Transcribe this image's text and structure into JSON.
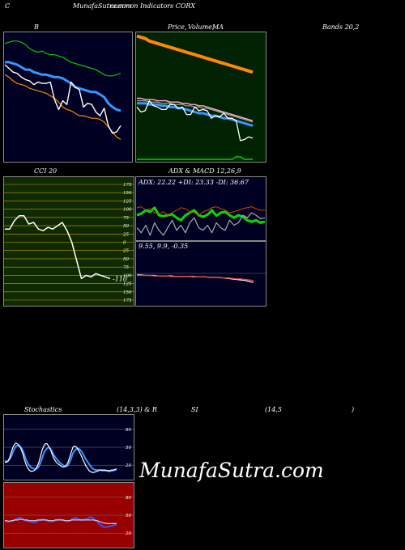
{
  "header": {
    "left": "C",
    "mid": "MunafaSutra.com",
    "mid2": "common Indicators CORX"
  },
  "titles": {
    "bollinger": "B",
    "price_ma_1": "Price,",
    "price_ma_2": "Volume,",
    "price_ma_3": "MA",
    "bands": "Bands 20,2",
    "cci": "CCI 20",
    "adx_macd": "ADX  & MACD 12,26,9",
    "stoch_a": "Stochastics",
    "stoch_b": "(14,3,3) & R",
    "stoch_c": "SI",
    "stoch_d": "(14,5",
    "stoch_e": ")"
  },
  "watermark": "MunafaSutra.com",
  "colors": {
    "bg": "#000000",
    "navy_panel": "#000022",
    "green_panel": "#002200",
    "cci_panel": "#0f2a00",
    "rsi_panel": "#990000",
    "grid": "#3a3a3a",
    "blue": "#3399ff",
    "orange": "#ff8800",
    "green": "#00cc00",
    "white": "#ffffff"
  },
  "chart_data": [
    {
      "id": "bollinger",
      "type": "line",
      "title": "B",
      "x": [
        0,
        1,
        2,
        3,
        4,
        5,
        6,
        7,
        8,
        9,
        10,
        11,
        12,
        13,
        14,
        15,
        16,
        17,
        18,
        19,
        20,
        21,
        22,
        23,
        24,
        25,
        26,
        27,
        28
      ],
      "series": [
        {
          "color": "#00cc00",
          "values": [
            0.93,
            0.94,
            0.95,
            0.95,
            0.94,
            0.92,
            0.89,
            0.87,
            0.86,
            0.87,
            0.85,
            0.84,
            0.84,
            0.83,
            0.82,
            0.8,
            0.78,
            0.77,
            0.76,
            0.75,
            0.74,
            0.73,
            0.72,
            0.7,
            0.68,
            0.67,
            0.67,
            0.68,
            0.69
          ]
        },
        {
          "color": "#3399ff",
          "values": [
            0.78,
            0.78,
            0.77,
            0.76,
            0.74,
            0.72,
            0.72,
            0.7,
            0.69,
            0.68,
            0.68,
            0.67,
            0.66,
            0.66,
            0.65,
            0.63,
            0.61,
            0.58,
            0.57,
            0.56,
            0.55,
            0.54,
            0.54,
            0.52,
            0.5,
            0.45,
            0.42,
            0.4,
            0.39
          ]
        },
        {
          "color": "#ff8800",
          "values": [
            0.68,
            0.66,
            0.63,
            0.61,
            0.6,
            0.59,
            0.57,
            0.56,
            0.55,
            0.54,
            0.53,
            0.51,
            0.49,
            0.46,
            0.42,
            0.4,
            0.39,
            0.37,
            0.35,
            0.35,
            0.34,
            0.33,
            0.33,
            0.32,
            0.3,
            0.26,
            0.22,
            0.18,
            0.16
          ]
        },
        {
          "color": "#ffffff",
          "values": [
            0.76,
            0.73,
            0.7,
            0.69,
            0.66,
            0.64,
            0.63,
            0.6,
            0.62,
            0.61,
            0.61,
            0.62,
            0.48,
            0.4,
            0.47,
            0.44,
            0.62,
            0.58,
            0.56,
            0.42,
            0.45,
            0.44,
            0.38,
            0.35,
            0.41,
            0.27,
            0.21,
            0.22,
            0.27
          ]
        }
      ]
    },
    {
      "id": "price_volume_ma",
      "type": "line",
      "title": "Price, Volume, MA",
      "x": [
        0,
        1,
        2,
        3,
        4,
        5,
        6,
        7,
        8,
        9,
        10,
        11,
        12,
        13,
        14,
        15,
        16,
        17,
        18,
        19,
        20,
        21,
        22,
        23,
        24,
        25,
        26,
        27,
        28
      ],
      "series": [
        {
          "color": "#ff8800",
          "values": [
            0.99,
            0.98,
            0.97,
            0.95,
            0.94,
            0.93,
            0.92,
            0.91,
            0.9,
            0.89,
            0.88,
            0.87,
            0.86,
            0.85,
            0.84,
            0.83,
            0.82,
            0.81,
            0.8,
            0.79,
            0.78,
            0.77,
            0.76,
            0.75,
            0.74,
            0.73,
            0.72,
            0.71,
            0.7
          ]
        },
        {
          "color": "#ffaacc",
          "values": [
            0.49,
            0.49,
            0.48,
            0.48,
            0.48,
            0.47,
            0.47,
            0.47,
            0.46,
            0.46,
            0.46,
            0.45,
            0.45,
            0.44,
            0.44,
            0.43,
            0.43,
            0.42,
            0.41,
            0.4,
            0.39,
            0.38,
            0.37,
            0.36,
            0.35,
            0.34,
            0.33,
            0.32,
            0.31
          ]
        },
        {
          "color": "#aaaaaa",
          "values": [
            0.47,
            0.47,
            0.47,
            0.46,
            0.46,
            0.46,
            0.45,
            0.45,
            0.45,
            0.44,
            0.44,
            0.44,
            0.43,
            0.43,
            0.42,
            0.42,
            0.41,
            0.41,
            0.4,
            0.39,
            0.38,
            0.37,
            0.36,
            0.35,
            0.34,
            0.33,
            0.32,
            0.31,
            0.3
          ]
        },
        {
          "color": "#3399ff",
          "values": [
            0.45,
            0.45,
            0.45,
            0.44,
            0.44,
            0.44,
            0.43,
            0.43,
            0.42,
            0.42,
            0.41,
            0.41,
            0.4,
            0.39,
            0.38,
            0.37,
            0.37,
            0.36,
            0.35,
            0.35,
            0.34,
            0.33,
            0.33,
            0.32,
            0.31,
            0.3,
            0.29,
            0.28,
            0.27
          ]
        },
        {
          "color": "#ffffff",
          "values": [
            0.42,
            0.38,
            0.39,
            0.47,
            0.43,
            0.42,
            0.4,
            0.4,
            0.44,
            0.44,
            0.41,
            0.42,
            0.36,
            0.36,
            0.42,
            0.39,
            0.4,
            0.39,
            0.33,
            0.35,
            0.34,
            0.37,
            0.33,
            0.33,
            0.31,
            0.15,
            0.16,
            0.18,
            0.17
          ]
        },
        {
          "color": "#00aa00",
          "values": [
            0.0,
            0.0,
            0.0,
            0.0,
            0.0,
            0.0,
            0.0,
            0.0,
            0.0,
            0.0,
            0.0,
            0.0,
            0.0,
            0.0,
            0.0,
            0.0,
            0.0,
            0.0,
            0.0,
            0.0,
            0.0,
            0.0,
            0.0,
            0.0,
            0.02,
            0.02,
            0.0,
            0.0,
            0.0
          ]
        }
      ]
    },
    {
      "id": "cci",
      "type": "line",
      "title": "CCI 20",
      "ylim": [
        -175,
        175
      ],
      "yticks": [
        175,
        150,
        125,
        100,
        75,
        50,
        25,
        0,
        -25,
        -50,
        -75,
        -100,
        -125,
        -150,
        -175
      ],
      "ytick_labels": [
        "175",
        "150",
        "125",
        "100",
        "75",
        "50",
        "25",
        "0",
        "25",
        "50",
        "75",
        "100",
        "125",
        "150",
        "175"
      ],
      "x": [
        0,
        1,
        2,
        3,
        4,
        5,
        6,
        7,
        8,
        9,
        10,
        11,
        12,
        13,
        14,
        15,
        16,
        17,
        18,
        19,
        20,
        21,
        22
      ],
      "values": [
        40,
        40,
        65,
        80,
        80,
        55,
        60,
        40,
        35,
        45,
        40,
        50,
        60,
        35,
        0,
        -55,
        -110,
        -100,
        -105,
        -95,
        -100,
        -105,
        -110
      ],
      "last_label": "-110"
    },
    {
      "id": "adx",
      "type": "line",
      "title": "ADX  & MACD 12,26,9",
      "label": "ADX: 22.22  +DI: 23.33 -DI: 36.67",
      "x": [
        0,
        1,
        2,
        3,
        4,
        5,
        6,
        7,
        8,
        9,
        10,
        11,
        12,
        13,
        14,
        15,
        16,
        17,
        18,
        19,
        20,
        21,
        22,
        23,
        24,
        25,
        26,
        27,
        28,
        29
      ],
      "series": [
        {
          "color": "#00dd00",
          "values": [
            0.45,
            0.48,
            0.55,
            0.52,
            0.6,
            0.45,
            0.43,
            0.45,
            0.47,
            0.4,
            0.35,
            0.45,
            0.5,
            0.55,
            0.45,
            0.42,
            0.46,
            0.55,
            0.44,
            0.5,
            0.52,
            0.45,
            0.4,
            0.45,
            0.42,
            0.35,
            0.32,
            0.35,
            0.3,
            0.32
          ]
        },
        {
          "color": "#cc4400",
          "values": [
            0.6,
            0.62,
            0.55,
            0.58,
            0.5,
            0.48,
            0.52,
            0.45,
            0.5,
            0.55,
            0.6,
            0.58,
            0.52,
            0.5,
            0.45,
            0.52,
            0.55,
            0.6,
            0.62,
            0.58,
            0.55,
            0.5,
            0.52,
            0.55,
            0.58,
            0.6,
            0.62,
            0.58,
            0.55,
            0.55
          ]
        },
        {
          "color": "#aaaaaa",
          "values": [
            0.2,
            0.1,
            0.25,
            0.05,
            0.3,
            0.15,
            0.05,
            0.2,
            0.35,
            0.15,
            0.25,
            0.1,
            0.3,
            0.4,
            0.2,
            0.15,
            0.25,
            0.1,
            0.3,
            0.2,
            0.15,
            0.35,
            0.25,
            0.3,
            0.45,
            0.4,
            0.5,
            0.45,
            0.38,
            0.4
          ]
        }
      ]
    },
    {
      "id": "macd",
      "type": "line",
      "label": "9.55,  9.9,  -0.35",
      "x": [
        0,
        1,
        2,
        3,
        4,
        5,
        6,
        7,
        8,
        9,
        10,
        11,
        12,
        13,
        14,
        15,
        16,
        17,
        18,
        19,
        20,
        21,
        22,
        23,
        24,
        25,
        26,
        27
      ],
      "series": [
        {
          "color": "#ffffff",
          "values": [
            0.55,
            0.55,
            0.54,
            0.54,
            0.54,
            0.53,
            0.53,
            0.53,
            0.53,
            0.52,
            0.52,
            0.52,
            0.52,
            0.52,
            0.51,
            0.51,
            0.51,
            0.5,
            0.5,
            0.5,
            0.49,
            0.48,
            0.47,
            0.46,
            0.45,
            0.44,
            0.42,
            0.4
          ]
        },
        {
          "color": "#ff4444",
          "values": [
            0.54,
            0.54,
            0.54,
            0.54,
            0.53,
            0.53,
            0.53,
            0.53,
            0.52,
            0.52,
            0.52,
            0.52,
            0.52,
            0.51,
            0.51,
            0.51,
            0.51,
            0.5,
            0.5,
            0.5,
            0.49,
            0.49,
            0.48,
            0.47,
            0.47,
            0.46,
            0.45,
            0.44
          ]
        }
      ]
    },
    {
      "id": "stochastics",
      "type": "line",
      "title": "Stochastics (14,3,3)",
      "ylim": [
        0,
        100
      ],
      "yticks": [
        80,
        50,
        20
      ],
      "x": [
        0,
        1,
        2,
        3,
        4,
        5,
        6,
        7,
        8,
        9,
        10,
        11,
        12,
        13,
        14,
        15,
        16,
        17,
        18,
        19,
        20,
        21,
        22,
        23,
        24,
        25,
        26,
        27,
        28,
        29,
        30,
        31,
        32,
        33,
        34,
        35,
        36,
        37,
        38,
        39,
        40,
        41,
        42,
        43,
        44,
        45,
        46,
        47,
        48,
        49,
        50,
        51,
        52,
        53,
        54,
        55,
        56,
        57,
        58,
        59,
        60,
        61,
        62,
        63,
        64,
        65,
        66,
        67,
        68,
        69
      ],
      "series": [
        {
          "color": "#3399ff",
          "values": [
            28,
            26,
            27,
            30,
            35,
            42,
            48,
            52,
            53,
            52,
            50,
            45,
            38,
            30,
            24,
            20,
            17,
            15,
            14,
            14,
            15,
            18,
            24,
            32,
            40,
            45,
            48,
            50,
            48,
            44,
            38,
            34,
            30,
            27,
            24,
            22,
            20,
            18,
            18,
            20,
            25,
            32,
            40,
            44,
            47,
            48,
            47,
            44,
            40,
            35,
            30,
            26,
            22,
            18,
            15,
            13,
            12,
            12,
            12,
            12,
            11,
            11,
            11,
            11,
            10,
            10,
            11,
            11,
            12,
            13
          ]
        },
        {
          "color": "#ffffff",
          "values": [
            25,
            25,
            27,
            33,
            42,
            50,
            55,
            57,
            55,
            53,
            47,
            40,
            30,
            22,
            16,
            12,
            10,
            10,
            11,
            13,
            18,
            25,
            35,
            45,
            52,
            56,
            56,
            52,
            47,
            40,
            33,
            28,
            24,
            22,
            20,
            18,
            17,
            18,
            20,
            25,
            33,
            42,
            50,
            52,
            51,
            47,
            42,
            37,
            31,
            25,
            19,
            15,
            11,
            9,
            8,
            8,
            9,
            10,
            11,
            12,
            12,
            12,
            12,
            11,
            11,
            11,
            12,
            12,
            13,
            14
          ]
        }
      ]
    },
    {
      "id": "rsi",
      "type": "line",
      "title": "RSI (14,5)",
      "ylim": [
        0,
        100
      ],
      "yticks": [
        80,
        50,
        20
      ],
      "x": [
        0,
        1,
        2,
        3,
        4,
        5,
        6,
        7,
        8,
        9,
        10,
        11,
        12,
        13,
        14,
        15,
        16,
        17,
        18,
        19,
        20,
        21,
        22,
        23,
        24,
        25,
        26,
        27,
        28,
        29,
        30,
        31,
        32,
        33,
        34,
        35,
        36,
        37,
        38,
        39,
        40,
        41,
        42,
        43,
        44,
        45,
        46,
        47,
        48,
        49,
        50,
        51,
        52,
        53,
        54,
        55,
        56,
        57,
        58,
        59,
        60,
        61,
        62,
        63,
        64,
        65,
        66,
        67,
        68,
        69
      ],
      "series": [
        {
          "color": "#3355ff",
          "values": [
            40,
            40,
            39,
            40,
            40,
            41,
            42,
            43,
            45,
            46,
            45,
            43,
            42,
            41,
            40,
            40,
            39,
            39,
            38,
            39,
            40,
            41,
            42,
            43,
            43,
            42,
            41,
            40,
            40,
            39,
            40,
            41,
            42,
            43,
            43,
            42,
            42,
            41,
            40,
            40,
            41,
            42,
            44,
            45,
            46,
            44,
            43,
            42,
            42,
            43,
            43,
            44,
            46,
            47,
            46,
            44,
            42,
            40,
            36,
            34,
            32,
            30,
            30,
            30,
            31,
            32,
            32,
            33,
            34,
            34
          ]
        },
        {
          "color": "#cccccc",
          "values": [
            41,
            41,
            40,
            40,
            41,
            41,
            42,
            42,
            42,
            43,
            43,
            43,
            42,
            42,
            42,
            41,
            41,
            41,
            41,
            41,
            42,
            42,
            42,
            42,
            42,
            42,
            42,
            41,
            41,
            41,
            41,
            42,
            42,
            42,
            42,
            42,
            42,
            41,
            41,
            41,
            41,
            42,
            42,
            42,
            42,
            42,
            42,
            42,
            42,
            42,
            42,
            42,
            42,
            42,
            42,
            42,
            41,
            41,
            40,
            39,
            38,
            37,
            37,
            36,
            36,
            36,
            36,
            36,
            36,
            36
          ]
        }
      ]
    }
  ]
}
